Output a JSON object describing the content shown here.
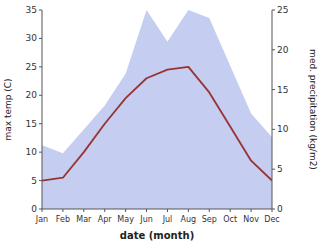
{
  "chart_data": {
    "type": "line",
    "categories": [
      "Jan",
      "Feb",
      "Mar",
      "Apr",
      "May",
      "Jun",
      "Jul",
      "Aug",
      "Sep",
      "Oct",
      "Nov",
      "Dec"
    ],
    "xlabel": "date (month)",
    "ylabel": "max temp (C)",
    "y2label": "med. precipitation (kg/m2)",
    "series": [
      {
        "type": "area",
        "axis": "y2",
        "color": "#c5cdf0",
        "values": [
          8,
          7,
          10,
          13,
          17,
          25,
          21,
          25,
          24,
          18,
          12,
          9
        ]
      },
      {
        "type": "line",
        "color": "#993333",
        "values": [
          5.0,
          5.5,
          10.0,
          15.0,
          19.5,
          23.0,
          24.5,
          25.0,
          20.5,
          14.5,
          8.5,
          5.0
        ]
      }
    ],
    "ylim": [
      0,
      35
    ],
    "yticks": [
      0,
      5,
      10,
      15,
      20,
      25,
      30,
      35
    ],
    "y2lim": [
      0,
      25
    ],
    "y2ticks": [
      0,
      5,
      10,
      15,
      20,
      25
    ],
    "grid": false
  }
}
